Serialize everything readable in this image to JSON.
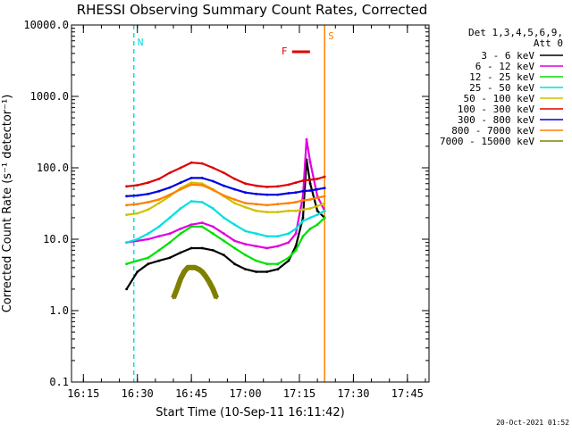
{
  "chart_data": {
    "type": "line",
    "title": "RHESSI Observing Summary Count Rates, Corrected",
    "xlabel": "Start Time (10-Sep-11 16:11:42)",
    "ylabel": "Corrected Count Rate (s⁻¹ detector⁻¹)",
    "y_scale": "log",
    "ylim": [
      0.1,
      10000
    ],
    "xlim": [
      "16:11:42",
      "17:51:00"
    ],
    "x_ticks": [
      {
        "time": "16:15",
        "label": "16:15"
      },
      {
        "time": "16:30",
        "label": "16:30"
      },
      {
        "time": "16:45",
        "label": "16:45"
      },
      {
        "time": "17:00",
        "label": "17:00"
      },
      {
        "time": "17:15",
        "label": "17:15"
      },
      {
        "time": "17:30",
        "label": "17:30"
      },
      {
        "time": "17:45",
        "label": "17:45"
      }
    ],
    "y_ticks": [
      {
        "value": 0.1,
        "label": "0.1"
      },
      {
        "value": 1,
        "label": "1.0"
      },
      {
        "value": 10,
        "label": "10.0"
      },
      {
        "value": 100,
        "label": "100.0"
      },
      {
        "value": 1000,
        "label": "1000.0"
      },
      {
        "value": 10000,
        "label": "10000.0"
      }
    ],
    "legend_header": [
      "Det 1,3,4,5,6,9,",
      "Att 0"
    ],
    "legend_position": "right",
    "series": [
      {
        "name": "3 - 6 keV",
        "color": "#000000",
        "points": [
          [
            "16:27",
            2.0
          ],
          [
            "16:30",
            3.5
          ],
          [
            "16:33",
            4.5
          ],
          [
            "16:36",
            5.0
          ],
          [
            "16:39",
            5.5
          ],
          [
            "16:42",
            6.5
          ],
          [
            "16:45",
            7.5
          ],
          [
            "16:48",
            7.5
          ],
          [
            "16:51",
            7.0
          ],
          [
            "16:54",
            6.0
          ],
          [
            "16:57",
            4.5
          ],
          [
            "17:00",
            3.8
          ],
          [
            "17:03",
            3.5
          ],
          [
            "17:06",
            3.5
          ],
          [
            "17:09",
            3.8
          ],
          [
            "17:12",
            5.0
          ],
          [
            "17:14",
            8.0
          ],
          [
            "17:16",
            20
          ],
          [
            "17:17",
            130
          ],
          [
            "17:18",
            60
          ],
          [
            "17:20",
            25
          ],
          [
            "17:22",
            20
          ]
        ]
      },
      {
        "name": "6 - 12 keV",
        "color": "#e000e0",
        "points": [
          [
            "16:27",
            9.0
          ],
          [
            "16:30",
            9.5
          ],
          [
            "16:33",
            10
          ],
          [
            "16:36",
            11
          ],
          [
            "16:39",
            12
          ],
          [
            "16:42",
            14
          ],
          [
            "16:45",
            16
          ],
          [
            "16:48",
            17
          ],
          [
            "16:51",
            15
          ],
          [
            "16:54",
            12
          ],
          [
            "16:57",
            9.5
          ],
          [
            "17:00",
            8.5
          ],
          [
            "17:03",
            8.0
          ],
          [
            "17:06",
            7.5
          ],
          [
            "17:09",
            8.0
          ],
          [
            "17:12",
            9.0
          ],
          [
            "17:14",
            12
          ],
          [
            "17:16",
            40
          ],
          [
            "17:17",
            250
          ],
          [
            "17:18",
            120
          ],
          [
            "17:20",
            40
          ],
          [
            "17:22",
            25
          ]
        ]
      },
      {
        "name": "12 - 25 keV",
        "color": "#00e000",
        "points": [
          [
            "16:27",
            4.5
          ],
          [
            "16:30",
            5.0
          ],
          [
            "16:33",
            5.5
          ],
          [
            "16:36",
            7.0
          ],
          [
            "16:39",
            9.0
          ],
          [
            "16:42",
            12
          ],
          [
            "16:45",
            15
          ],
          [
            "16:48",
            15
          ],
          [
            "16:51",
            12
          ],
          [
            "16:54",
            9.5
          ],
          [
            "16:57",
            7.5
          ],
          [
            "17:00",
            6.0
          ],
          [
            "17:03",
            5.0
          ],
          [
            "17:06",
            4.5
          ],
          [
            "17:09",
            4.5
          ],
          [
            "17:12",
            5.5
          ],
          [
            "17:14",
            7.0
          ],
          [
            "17:16",
            11
          ],
          [
            "17:18",
            14
          ],
          [
            "17:20",
            16
          ],
          [
            "17:22",
            20
          ]
        ]
      },
      {
        "name": "25 - 50 keV",
        "color": "#00e0e0",
        "points": [
          [
            "16:27",
            9.0
          ],
          [
            "16:30",
            10
          ],
          [
            "16:33",
            12
          ],
          [
            "16:36",
            15
          ],
          [
            "16:39",
            20
          ],
          [
            "16:42",
            27
          ],
          [
            "16:45",
            34
          ],
          [
            "16:48",
            33
          ],
          [
            "16:51",
            27
          ],
          [
            "16:54",
            20
          ],
          [
            "16:57",
            16
          ],
          [
            "17:00",
            13
          ],
          [
            "17:03",
            12
          ],
          [
            "17:06",
            11
          ],
          [
            "17:09",
            11
          ],
          [
            "17:12",
            12
          ],
          [
            "17:14",
            14
          ],
          [
            "17:16",
            18
          ],
          [
            "17:18",
            20
          ],
          [
            "17:20",
            22
          ],
          [
            "17:22",
            25
          ]
        ]
      },
      {
        "name": "50 - 100 keV",
        "color": "#d0c000",
        "points": [
          [
            "16:27",
            22
          ],
          [
            "16:30",
            23
          ],
          [
            "16:33",
            26
          ],
          [
            "16:36",
            32
          ],
          [
            "16:39",
            40
          ],
          [
            "16:42",
            52
          ],
          [
            "16:45",
            62
          ],
          [
            "16:48",
            60
          ],
          [
            "16:51",
            50
          ],
          [
            "16:54",
            40
          ],
          [
            "16:57",
            32
          ],
          [
            "17:00",
            28
          ],
          [
            "17:03",
            25
          ],
          [
            "17:06",
            24
          ],
          [
            "17:09",
            24
          ],
          [
            "17:12",
            25
          ],
          [
            "17:14",
            25
          ],
          [
            "17:16",
            26
          ],
          [
            "17:18",
            27
          ],
          [
            "17:20",
            29
          ],
          [
            "17:22",
            32
          ]
        ]
      },
      {
        "name": "100 - 300 keV",
        "color": "#e00000",
        "points": [
          [
            "16:27",
            55
          ],
          [
            "16:30",
            57
          ],
          [
            "16:33",
            62
          ],
          [
            "16:36",
            70
          ],
          [
            "16:39",
            85
          ],
          [
            "16:42",
            100
          ],
          [
            "16:45",
            118
          ],
          [
            "16:48",
            115
          ],
          [
            "16:51",
            100
          ],
          [
            "16:54",
            85
          ],
          [
            "16:57",
            70
          ],
          [
            "17:00",
            60
          ],
          [
            "17:03",
            56
          ],
          [
            "17:06",
            54
          ],
          [
            "17:09",
            55
          ],
          [
            "17:12",
            58
          ],
          [
            "17:14",
            62
          ],
          [
            "17:16",
            66
          ],
          [
            "17:18",
            68
          ],
          [
            "17:20",
            70
          ],
          [
            "17:22",
            75
          ]
        ]
      },
      {
        "name": "300 - 800 keV",
        "color": "#0000e0",
        "points": [
          [
            "16:27",
            40
          ],
          [
            "16:30",
            41
          ],
          [
            "16:33",
            43
          ],
          [
            "16:36",
            47
          ],
          [
            "16:39",
            53
          ],
          [
            "16:42",
            62
          ],
          [
            "16:45",
            72
          ],
          [
            "16:48",
            72
          ],
          [
            "16:51",
            65
          ],
          [
            "16:54",
            56
          ],
          [
            "16:57",
            50
          ],
          [
            "17:00",
            45
          ],
          [
            "17:03",
            43
          ],
          [
            "17:06",
            42
          ],
          [
            "17:09",
            42
          ],
          [
            "17:12",
            44
          ],
          [
            "17:14",
            45
          ],
          [
            "17:16",
            47
          ],
          [
            "17:18",
            48
          ],
          [
            "17:20",
            50
          ],
          [
            "17:22",
            52
          ]
        ]
      },
      {
        "name": "800 - 7000 keV",
        "color": "#ff8000",
        "points": [
          [
            "16:27",
            30
          ],
          [
            "16:30",
            31
          ],
          [
            "16:33",
            33
          ],
          [
            "16:36",
            36
          ],
          [
            "16:39",
            42
          ],
          [
            "16:42",
            50
          ],
          [
            "16:45",
            58
          ],
          [
            "16:48",
            57
          ],
          [
            "16:51",
            49
          ],
          [
            "16:54",
            41
          ],
          [
            "16:57",
            36
          ],
          [
            "17:00",
            32
          ],
          [
            "17:03",
            31
          ],
          [
            "17:06",
            30
          ],
          [
            "17:09",
            31
          ],
          [
            "17:12",
            32
          ],
          [
            "17:14",
            33
          ],
          [
            "17:16",
            35
          ],
          [
            "17:18",
            36
          ],
          [
            "17:20",
            38
          ],
          [
            "17:22",
            40
          ]
        ]
      },
      {
        "name": "7000 - 15000 keV",
        "color": "#808000",
        "points": [
          [
            "16:40",
            1.5
          ],
          [
            "16:41",
            2.0
          ],
          [
            "16:42",
            2.8
          ],
          [
            "16:43",
            3.5
          ],
          [
            "16:44",
            4.0
          ],
          [
            "16:45",
            4.0
          ],
          [
            "16:46",
            4.0
          ],
          [
            "16:47",
            3.8
          ],
          [
            "16:48",
            3.5
          ],
          [
            "16:49",
            3.0
          ],
          [
            "16:50",
            2.5
          ],
          [
            "16:51",
            2.0
          ],
          [
            "16:52",
            1.5
          ]
        ]
      }
    ],
    "annotations": [
      {
        "label": "N",
        "time": "16:29"
      },
      {
        "label": "F",
        "time": "17:09"
      },
      {
        "label": "S",
        "time": "17:22"
      }
    ],
    "timestamp": "20-Oct-2021 01:52"
  }
}
